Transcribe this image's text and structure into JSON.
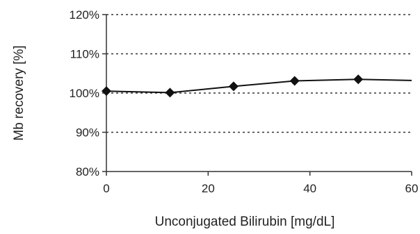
{
  "chart_data": {
    "type": "line",
    "title": "",
    "xlabel": "Unconjugated Bilirubin [mg/dL]",
    "ylabel": "Mb recovery  [%]",
    "xlim": [
      0,
      60
    ],
    "ylim": [
      80,
      120
    ],
    "x_ticks": [
      0,
      20,
      40,
      60
    ],
    "x_tick_labels": [
      "0",
      "20",
      "40",
      "60"
    ],
    "y_ticks": [
      80,
      90,
      100,
      110,
      120
    ],
    "y_tick_labels": [
      "80%",
      "90%",
      "100%",
      "110%",
      "120%"
    ],
    "grid": "horizontal-dotted",
    "legend": "none",
    "colors": {
      "line": "#111111",
      "marker": "#111111",
      "grid": "#333333",
      "axis": "#333333"
    },
    "series": [
      {
        "marker": "diamond",
        "x": [
          0,
          12.5,
          25,
          37,
          49.5,
          60
        ],
        "y": [
          100.5,
          100.1,
          101.7,
          103.1,
          103.5,
          103.2
        ],
        "markers_on": [
          true,
          true,
          true,
          true,
          true,
          false
        ]
      }
    ]
  }
}
